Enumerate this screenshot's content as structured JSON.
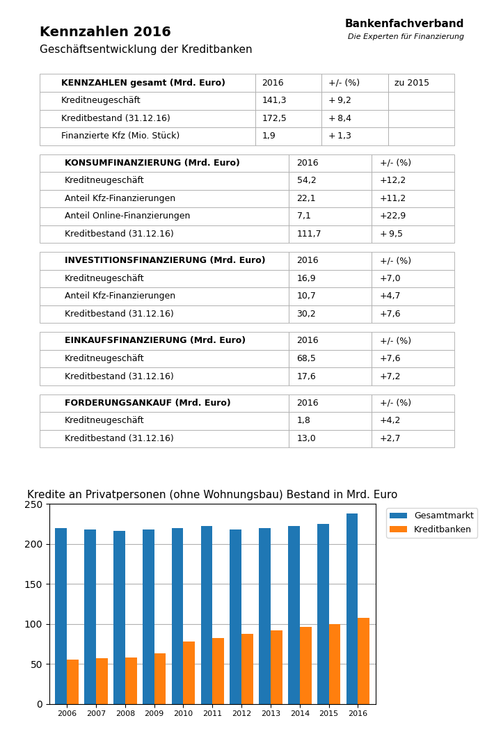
{
  "title": "Kennzahlen 2016",
  "subtitle": "Geschäftsentwicklung der Kreditbanken",
  "annotations": [
    "Bankenfachverband",
    "Die Experten für Finanzierung"
  ],
  "chart_data": [
    {
      "type": "table",
      "columns": [
        "KENNZAHLEN gesamt (Mrd. Euro)",
        "2016",
        "+/- (%)",
        "zu 2015"
      ],
      "rows": [
        [
          "Kreditneugeschäft",
          "141,3",
          "+ 9,2"
        ],
        [
          "Kreditbestand (31.12.16)",
          "172,5",
          "+ 8,4"
        ],
        [
          "Finanzierte Kfz (Mio. Stück)",
          "1,9",
          "+ 1,3"
        ]
      ]
    },
    {
      "type": "table",
      "columns": [
        "KONSUMFINANZIERUNG (Mrd. Euro)",
        "2016",
        "+/- (%)"
      ],
      "rows": [
        [
          "Kreditneugeschäft",
          "54,2",
          "+12,2"
        ],
        [
          "Anteil Kfz-Finanzierungen",
          "22,1",
          "+11,2"
        ],
        [
          "Anteil Online-Finanzierungen",
          "7,1",
          "+22,9"
        ],
        [
          "Kreditbestand (31.12.16)",
          "111,7",
          "+ 9,5"
        ]
      ]
    },
    {
      "type": "table",
      "columns": [
        "INVESTITIONSFINANZIERUNG (Mrd. Euro)",
        "2016",
        "+/- (%)"
      ],
      "rows": [
        [
          "Kreditneugeschäft",
          "16,9",
          "+7,0"
        ],
        [
          "Anteil Kfz-Finanzierungen",
          "10,7",
          "+4,7"
        ],
        [
          "Kreditbestand (31.12.16)",
          "30,2",
          "+7,6"
        ]
      ]
    },
    {
      "type": "table",
      "columns": [
        "EINKAUFSFINANZIERUNG (Mrd. Euro)",
        "2016",
        "+/- (%)"
      ],
      "rows": [
        [
          "Kreditneugeschäft",
          "68,5",
          "+7,6"
        ],
        [
          "Kreditbestand (31.12.16)",
          "17,6",
          "+7,2"
        ]
      ]
    },
    {
      "type": "table",
      "columns": [
        "FORDERUNGSANKAUF (Mrd. Euro)",
        "2016",
        "+/- (%)"
      ],
      "rows": [
        [
          "Kreditneugeschäft",
          "1,8",
          "+4,2"
        ],
        [
          "Kreditbestand (31.12.16)",
          "13,0",
          "+2,7"
        ]
      ]
    },
    {
      "type": "bar",
      "title": "Kredite an Privatpersonen (ohne Wohnungsbau) Bestand in Mrd. Euro",
      "categories": [
        "2006",
        "2007",
        "2008",
        "2009",
        "2010",
        "2011",
        "2012",
        "2013",
        "2014",
        "2015",
        "2016"
      ],
      "series": [
        {
          "name": "Gesamtmarkt",
          "values": [
            220,
            218,
            216,
            218,
            220,
            222,
            218,
            220,
            222,
            225,
            238
          ]
        },
        {
          "name": "Kreditbanken",
          "values": [
            55,
            57,
            58,
            63,
            78,
            82,
            88,
            92,
            96,
            100,
            108
          ]
        }
      ],
      "ylim": [
        0,
        250
      ],
      "yticks": [
        0,
        50,
        100,
        150,
        200,
        250
      ],
      "grid": true,
      "legend": "upper left"
    }
  ]
}
